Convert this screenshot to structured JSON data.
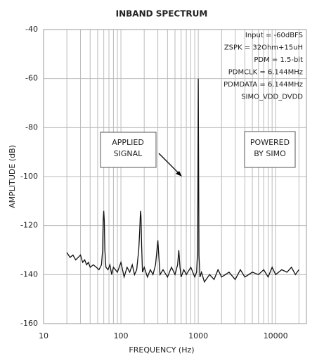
{
  "chart_data": {
    "type": "line",
    "title": "INBAND SPECTRUM",
    "xlabel": "FREQUENCY (Hz)",
    "ylabel": "AMPLITUDE (dB)",
    "xscale": "log",
    "xlim": [
      10,
      25000
    ],
    "xticks": [
      10,
      100,
      1000,
      10000
    ],
    "xminorticks": [
      20,
      30,
      40,
      50,
      60,
      70,
      80,
      90,
      200,
      300,
      400,
      500,
      600,
      700,
      800,
      900,
      2000,
      3000,
      4000,
      5000,
      6000,
      7000,
      8000,
      9000,
      20000
    ],
    "ylim": [
      -160,
      -40
    ],
    "yticks": [
      -40,
      -60,
      -80,
      -100,
      -120,
      -140,
      -160
    ],
    "grid": true,
    "series": [
      {
        "color": "#111111",
        "x": [
          20,
          22,
          24,
          26,
          28,
          30,
          32,
          34,
          36,
          38,
          40,
          44,
          48,
          52,
          56,
          58,
          59,
          60,
          61,
          62,
          64,
          68,
          72,
          76,
          80,
          90,
          100,
          110,
          120,
          130,
          140,
          150,
          160,
          170,
          175,
          178,
          180,
          182,
          185,
          190,
          200,
          220,
          240,
          260,
          280,
          290,
          300,
          310,
          320,
          350,
          400,
          450,
          500,
          540,
          560,
          580,
          600,
          650,
          700,
          800,
          900,
          950,
          980,
          1000,
          1020,
          1050,
          1100,
          1200,
          1400,
          1600,
          1800,
          2000,
          2500,
          3000,
          3500,
          4000,
          5000,
          6000,
          7000,
          8000,
          9000,
          10000,
          12000,
          14000,
          16000,
          18000,
          20000
        ],
        "values": [
          -131,
          -133,
          -132,
          -134,
          -133,
          -132,
          -135,
          -134,
          -136,
          -135,
          -137,
          -136,
          -137,
          -138,
          -136,
          -130,
          -118,
          -114,
          -118,
          -130,
          -137,
          -138,
          -136,
          -140,
          -137,
          -139,
          -135,
          -141,
          -137,
          -139,
          -136,
          -140,
          -138,
          -130,
          -122,
          -116,
          -114,
          -117,
          -128,
          -139,
          -137,
          -141,
          -138,
          -140,
          -136,
          -131,
          -126,
          -133,
          -140,
          -138,
          -141,
          -137,
          -140,
          -136,
          -130,
          -137,
          -141,
          -138,
          -140,
          -137,
          -141,
          -139,
          -130,
          -60,
          -132,
          -141,
          -139,
          -143,
          -140,
          -142,
          -138,
          -141,
          -139,
          -142,
          -138,
          -141,
          -139,
          -140,
          -138,
          -141,
          -137,
          -140,
          -138,
          -139,
          -137,
          -140,
          -138
        ]
      }
    ],
    "conditions": [
      "Input = -60dBFS",
      "ZSPK = 32Ohm+15uH",
      "PDM = 1.5-bit",
      "PDMCLK = 6.144MHz",
      "PDMDATA = 6.144MHz",
      "SIMO_VDD_DVDD"
    ],
    "annotations": [
      {
        "lines": [
          "APPLIED",
          "SIGNAL"
        ]
      },
      {
        "lines": [
          "POWERED",
          "BY SIMO"
        ]
      }
    ]
  }
}
